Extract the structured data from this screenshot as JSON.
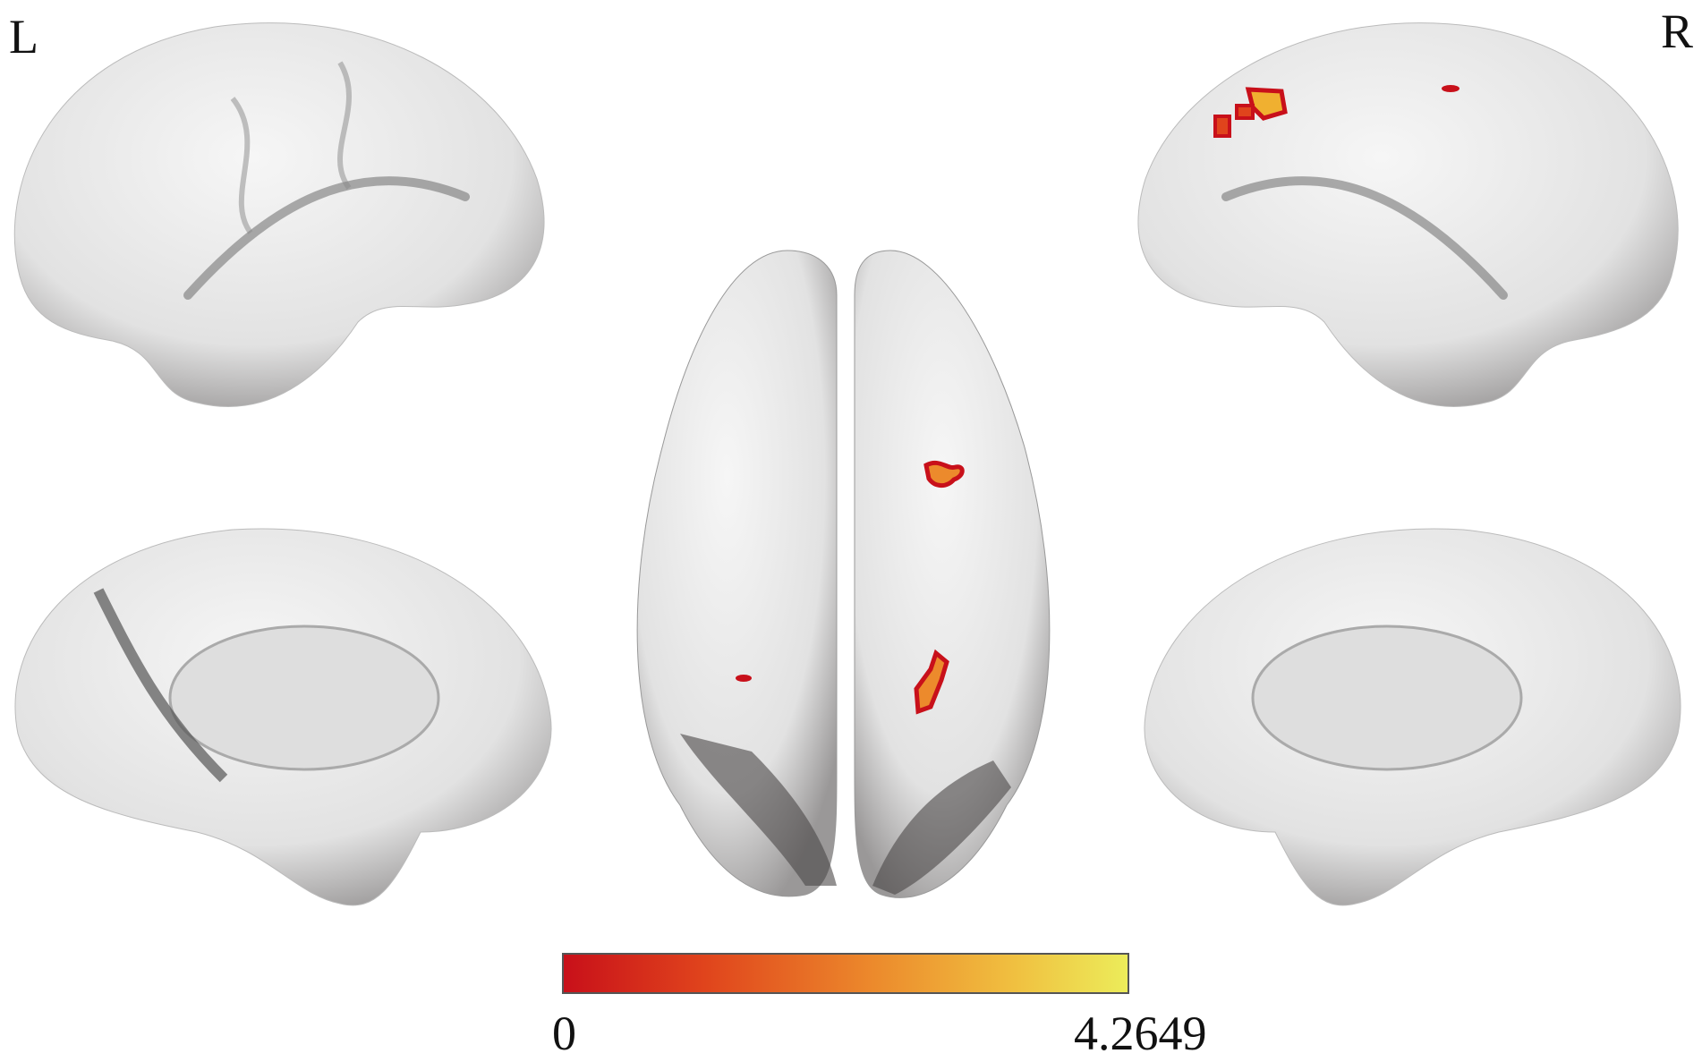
{
  "labels": {
    "left": "L",
    "right": "R"
  },
  "views": [
    "left-lateral",
    "left-medial",
    "dorsal",
    "right-lateral",
    "right-medial"
  ],
  "colorbar": {
    "min_label": "0",
    "max_label": "4.2649",
    "min": 0,
    "max": 4.2649,
    "colors": [
      "#c8101a",
      "#e0441c",
      "#ec8a2c",
      "#f0c040",
      "#ecec5a"
    ]
  },
  "colors": {
    "surface": "#e8e8e8",
    "shadow": "#4a4646",
    "activation": "#d42a10"
  }
}
